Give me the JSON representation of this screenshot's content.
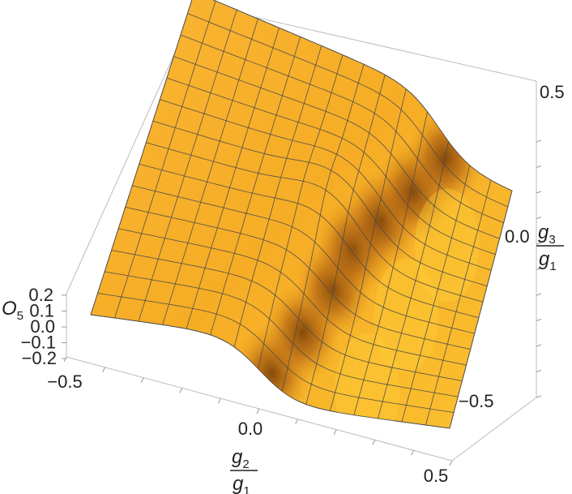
{
  "chart_data": {
    "type": "surface",
    "title": "",
    "x_axis": {
      "var": "g",
      "sub": "2",
      "den_var": "g",
      "den_sub": "1",
      "range": [
        -0.5,
        0.5
      ],
      "ticks": [
        {
          "value": -0.5,
          "label": "−0.5"
        },
        {
          "value": 0.0,
          "label": "0.0"
        },
        {
          "value": 0.5,
          "label": "0.5"
        }
      ]
    },
    "y_axis": {
      "var": "g",
      "sub": "3",
      "den_var": "g",
      "den_sub": "1",
      "range": [
        -0.5,
        0.5
      ],
      "ticks": [
        {
          "value": -0.5,
          "label": "−0.5"
        },
        {
          "value": 0.0,
          "label": "0.0"
        },
        {
          "value": 0.5,
          "label": "0.5"
        }
      ]
    },
    "z_axis": {
      "var": "O",
      "sub": "5",
      "range": [
        -0.2,
        0.2
      ],
      "ticks": [
        {
          "value": -0.2,
          "label": "−0.2"
        },
        {
          "value": -0.1,
          "label": "−0.1"
        },
        {
          "value": 0.0,
          "label": "0.0"
        },
        {
          "value": 0.1,
          "label": "0.1"
        },
        {
          "value": 0.2,
          "label": "0.2"
        }
      ]
    },
    "mesh_lines": 15,
    "surface_color": "#f7b32e",
    "mesh_color": "#4a4a4a",
    "box_color": "#bbbbbb"
  }
}
